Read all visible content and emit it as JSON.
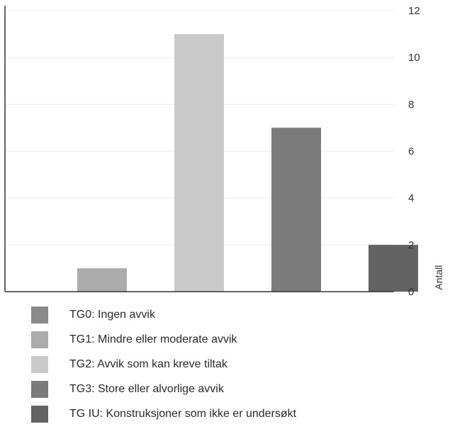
{
  "chart_data": {
    "type": "bar",
    "categories": [
      "TG0: Ingen avvik",
      "TG1: Mindre eller moderate avvik",
      "TG2: Avvik som kan kreve tiltak",
      "TG3: Store eller alvorlige avvik",
      "TG IU: Konstruksjoner som ikke er undersøkt"
    ],
    "values": [
      0,
      1,
      11,
      7,
      2
    ],
    "colors": [
      "#8a8a8a",
      "#ababab",
      "#c9c9c9",
      "#7b7b7b",
      "#636363"
    ],
    "ylabel": "Antall",
    "ylim": [
      0,
      12
    ],
    "yticks": [
      0,
      2,
      4,
      6,
      8,
      10,
      12
    ],
    "y_axis_position": "right",
    "grid": true,
    "legend_position": "bottom"
  }
}
